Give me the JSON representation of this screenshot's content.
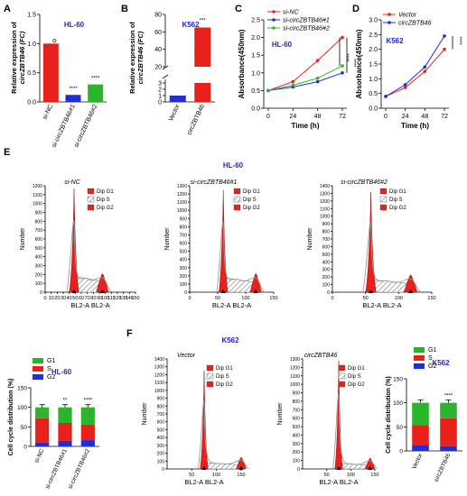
{
  "panel_letters": {
    "A": "A",
    "B": "B",
    "C": "C",
    "D": "D",
    "E": "E",
    "F": "F"
  },
  "colors": {
    "red": "#e8211d",
    "blue": "#1f2fd6",
    "green": "#2bb52b",
    "blue_title": "#2424d8",
    "gray": "#9a9a9a"
  },
  "hatch_label": "diagonal-hatch",
  "dip_legend": [
    "Dip G1",
    "Dip S",
    "Dip G2"
  ],
  "phase_legend": [
    "G1",
    "S",
    "G2"
  ],
  "hist_xlabel": "BL2-A BL2-A",
  "hist_ylabel": "Number",
  "titles": {
    "hl60": "HL-60",
    "k562": "K562"
  },
  "chart_data": [
    {
      "panel": "A",
      "type": "bar",
      "title": "HL-60",
      "ylabel": "Relative expression of circZBTB46 (FC)",
      "ylim": [
        0,
        1.5
      ],
      "yticks": [
        "0.0",
        "0.5",
        "1.0",
        "1.5"
      ],
      "categories": [
        "si-NC",
        "si-circZBTB46#1",
        "si-circZBTB46#2"
      ],
      "values": [
        1.0,
        0.12,
        0.3
      ],
      "bar_colors": [
        "red",
        "blue",
        "green"
      ],
      "significance": [
        "",
        "****",
        "****"
      ]
    },
    {
      "panel": "B",
      "type": "bar",
      "title": "K562",
      "ylabel": "Relative expression of circZBTB46 (FC)",
      "ylim": [
        0,
        80
      ],
      "yticks": [
        "0",
        "1",
        "2",
        "3",
        "20",
        "40",
        "60",
        "80"
      ],
      "categories": [
        "Vector",
        "circZBTB46"
      ],
      "values": [
        1.0,
        65
      ],
      "bar_colors": [
        "blue",
        "red"
      ],
      "significance": [
        "",
        "***"
      ]
    },
    {
      "panel": "C",
      "type": "line",
      "title": "HL-60",
      "xlabel": "Time (h)",
      "ylabel": "Absorbance(450nm)",
      "x": [
        0,
        24,
        48,
        72
      ],
      "ylim": [
        0,
        2.5
      ],
      "yticks": [
        "0.0",
        "0.5",
        "1.0",
        "1.5",
        "2.0",
        "2.5"
      ],
      "series": [
        {
          "name": "si-NC",
          "color": "red",
          "values": [
            0.5,
            0.75,
            1.35,
            2.0
          ]
        },
        {
          "name": "si-circZBTB46#1",
          "color": "blue",
          "values": [
            0.5,
            0.6,
            0.75,
            1.0
          ]
        },
        {
          "name": "si-circZBTB46#2",
          "color": "green",
          "values": [
            0.5,
            0.65,
            0.85,
            1.2
          ]
        }
      ],
      "significance": [
        "****",
        "****"
      ]
    },
    {
      "panel": "D",
      "type": "line",
      "title": "K562",
      "xlabel": "Time (h)",
      "ylabel": "Absorbance(450nm)",
      "x": [
        0,
        24,
        48,
        72
      ],
      "ylim": [
        0,
        3.0
      ],
      "yticks": [
        "0.0",
        "0.5",
        "1.0",
        "1.5",
        "2.0",
        "2.5",
        "3.0"
      ],
      "series": [
        {
          "name": "Vector",
          "color": "red",
          "values": [
            0.4,
            0.7,
            1.25,
            2.0
          ]
        },
        {
          "name": "circZBTB46",
          "color": "blue",
          "values": [
            0.4,
            0.8,
            1.4,
            2.45
          ]
        }
      ],
      "significance": [
        "****"
      ]
    },
    {
      "panel": "E",
      "type": "area",
      "title": "HL-60",
      "histograms": [
        {
          "label": "si-NC",
          "xlim": [
            0,
            150
          ],
          "xticks": [
            "0",
            "10",
            "20",
            "30",
            "40",
            "50",
            "60",
            "70",
            "80",
            "90",
            "100",
            "110",
            "120",
            "130",
            "140",
            "150"
          ],
          "ylim": [
            0,
            1200
          ],
          "yticks": [
            "0",
            "100",
            "200",
            "300",
            "400",
            "500",
            "600",
            "700",
            "800",
            "900",
            "1000",
            "1100",
            "1200"
          ],
          "g1_peak": 48,
          "g2_peak": 95,
          "g1_height": 1170,
          "g2_height": 210,
          "s_height": 300
        },
        {
          "label": "si-circZBTB46#1",
          "xlim": [
            0,
            150
          ],
          "xticks": [
            "0",
            "50",
            "100",
            "150"
          ],
          "ylim": [
            0,
            1300
          ],
          "yticks": [
            "0",
            "100",
            "200",
            "300",
            "400",
            "500",
            "600",
            "700",
            "800",
            "900",
            "1000",
            "1100",
            "1200",
            "1300"
          ],
          "g1_peak": 60,
          "g2_peak": 118,
          "g1_height": 1250,
          "g2_height": 230,
          "s_height": 300
        },
        {
          "label": "si-circZBTB46#2",
          "xlim": [
            0,
            150
          ],
          "xticks": [
            "0",
            "50",
            "100",
            "150"
          ],
          "ylim": [
            0,
            1400
          ],
          "yticks": [
            "0",
            "100",
            "200",
            "300",
            "400",
            "500",
            "600",
            "700",
            "800",
            "900",
            "1000",
            "1100",
            "1200",
            "1300",
            "1400"
          ],
          "g1_peak": 58,
          "g2_peak": 118,
          "g1_height": 1320,
          "g2_height": 230,
          "s_height": 280
        }
      ]
    },
    {
      "panel": "E-bar",
      "type": "bar",
      "title": "HL-60",
      "ylabel": "Cell cycle distribution (%)",
      "ylim": [
        0,
        150
      ],
      "yticks": [
        "0",
        "50",
        "100",
        "150"
      ],
      "categories": [
        "si-NC",
        "si-circZBTB46#1",
        "si-circZBTB46#2"
      ],
      "series": [
        {
          "name": "G2",
          "color": "blue",
          "values": [
            10,
            14,
            16
          ]
        },
        {
          "name": "S",
          "color": "red",
          "values": [
            62,
            46,
            40
          ]
        },
        {
          "name": "G1",
          "color": "green",
          "values": [
            28,
            40,
            44
          ]
        }
      ],
      "significance": [
        "",
        "**",
        "****"
      ]
    },
    {
      "panel": "F",
      "type": "area",
      "title": "K562",
      "histograms": [
        {
          "label": "Vector",
          "xlim": [
            0,
            150
          ],
          "xticks": [
            "50",
            "100",
            "150"
          ],
          "ylim": [
            0,
            1400
          ],
          "yticks": [
            "0",
            "100",
            "200",
            "300",
            "400",
            "500",
            "600",
            "700",
            "800",
            "900",
            "1000",
            "1100",
            "1200",
            "1300",
            "1400"
          ],
          "g1_peak": 75,
          "g2_peak": 150,
          "g1_height": 1250,
          "g2_height": 150,
          "s_height": 130
        },
        {
          "label": "circZBTB46",
          "xlim": [
            0,
            150
          ],
          "xticks": [
            "50",
            "100",
            "150"
          ],
          "ylim": [
            0,
            1300
          ],
          "yticks": [
            "0",
            "100",
            "200",
            "300",
            "400",
            "500",
            "600",
            "700",
            "800",
            "900",
            "1000",
            "1100",
            "1200",
            "1300"
          ],
          "g1_peak": 75,
          "g2_peak": 140,
          "g1_height": 1280,
          "g2_height": 130,
          "s_height": 110
        }
      ]
    },
    {
      "panel": "F-bar",
      "type": "bar",
      "title": "K562",
      "ylabel": "Cell cycle distribution (%)",
      "ylim": [
        0,
        150
      ],
      "yticks": [
        "0",
        "50",
        "100",
        "150"
      ],
      "categories": [
        "Vector",
        "circZBTB46"
      ],
      "series": [
        {
          "name": "G2",
          "color": "blue",
          "values": [
            12,
            10
          ]
        },
        {
          "name": "S",
          "color": "red",
          "values": [
            42,
            58
          ]
        },
        {
          "name": "G1",
          "color": "green",
          "values": [
            46,
            32
          ]
        }
      ],
      "significance": [
        "",
        "****"
      ]
    }
  ]
}
